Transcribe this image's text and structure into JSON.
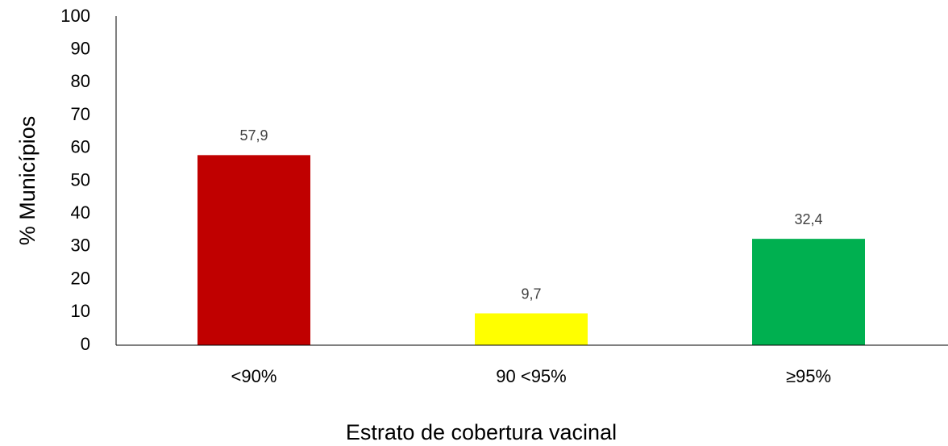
{
  "chart_data": {
    "type": "bar",
    "categories": [
      "<90%",
      "90 <95%",
      "≥95%"
    ],
    "values": [
      57.9,
      9.7,
      32.4
    ],
    "value_labels": [
      "57,9",
      "9,7",
      "32,4"
    ],
    "colors": [
      "#c00000",
      "#ffff00",
      "#00b050"
    ],
    "xlabel": "Estrato de cobertura vacinal",
    "ylabel": "% Municípios",
    "ylim": [
      0,
      100
    ],
    "yticks": [
      0,
      10,
      20,
      30,
      40,
      50,
      60,
      70,
      80,
      90,
      100
    ],
    "grid": false
  }
}
